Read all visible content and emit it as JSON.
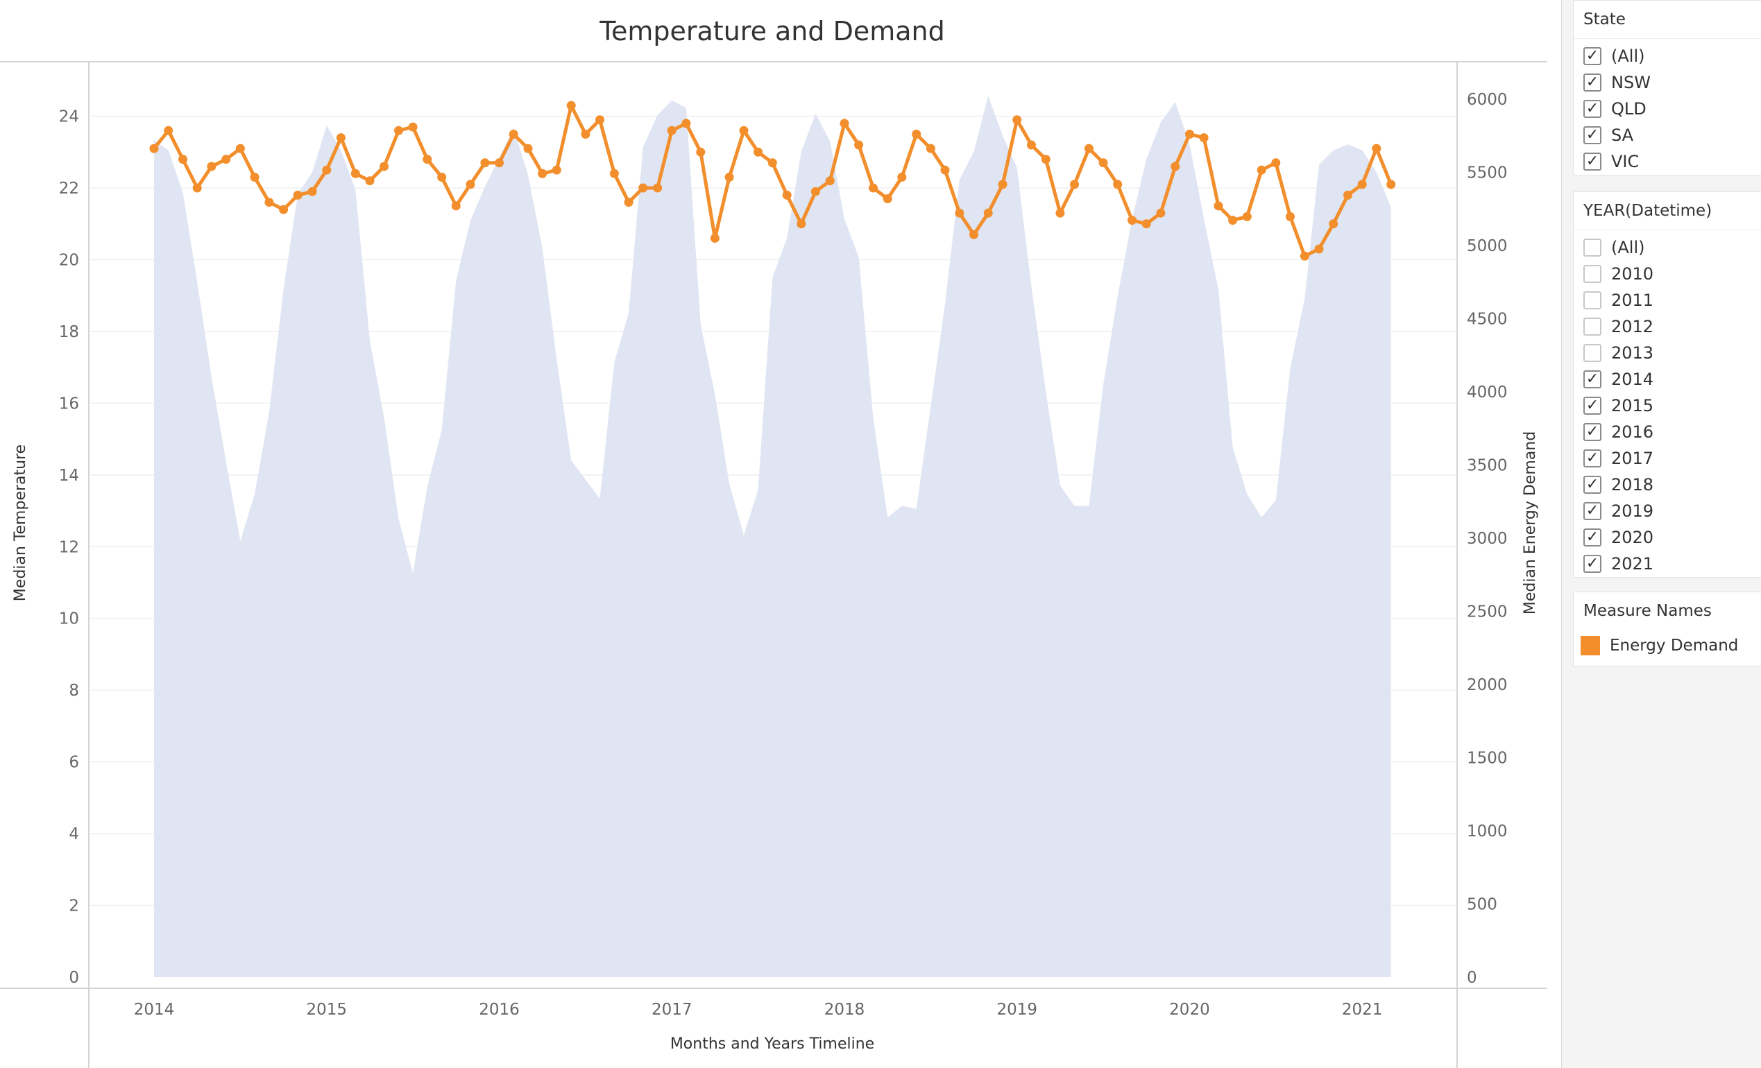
{
  "chart_data": {
    "type": "line",
    "title": "Temperature and Demand",
    "xlabel": "Months and Years Timeline",
    "ylabel_left": "Median Temperature",
    "ylabel_right": "Median Energy Demand",
    "x_ticks": [
      "2014",
      "2015",
      "2016",
      "2017",
      "2018",
      "2019",
      "2020",
      "2021"
    ],
    "y_left_ticks": [
      "0",
      "2",
      "4",
      "6",
      "8",
      "10",
      "12",
      "14",
      "16",
      "18",
      "20",
      "22",
      "24"
    ],
    "y_right_ticks": [
      "0",
      "500",
      "1000",
      "1500",
      "2000",
      "2500",
      "3000",
      "3500",
      "4000",
      "4500",
      "5000",
      "5500",
      "6000"
    ],
    "ylim_left": [
      0,
      25.5
    ],
    "ylim_right": [
      0,
      6250
    ],
    "xlim": [
      2013.63,
      2021.55
    ],
    "grid": true,
    "area_color": "#dfe5f2",
    "line_color": "#f28e2b",
    "series": [
      {
        "axis": "right",
        "type": "area",
        "x": [
          2014.0,
          2014.083,
          2014.167,
          2014.25,
          2014.333,
          2014.417,
          2014.5,
          2014.583,
          2014.667,
          2014.75,
          2014.833,
          2014.917,
          2015.0,
          2015.083,
          2015.167,
          2015.25,
          2015.333,
          2015.417,
          2015.5,
          2015.583,
          2015.667,
          2015.75,
          2015.833,
          2015.917,
          2016.0,
          2016.083,
          2016.167,
          2016.25,
          2016.333,
          2016.417,
          2016.5,
          2016.583,
          2016.667,
          2016.75,
          2016.833,
          2016.917,
          2017.0,
          2017.083,
          2017.167,
          2017.25,
          2017.333,
          2017.417,
          2017.5,
          2017.583,
          2017.667,
          2017.75,
          2017.833,
          2017.917,
          2018.0,
          2018.083,
          2018.167,
          2018.25,
          2018.333,
          2018.417,
          2018.5,
          2018.583,
          2018.667,
          2018.75,
          2018.833,
          2018.917,
          2019.0,
          2019.083,
          2019.167,
          2019.25,
          2019.333,
          2019.417,
          2019.5,
          2019.583,
          2019.667,
          2019.75,
          2019.833,
          2019.917,
          2020.0,
          2020.083,
          2020.167,
          2020.25,
          2020.333,
          2020.417,
          2020.5,
          2020.583,
          2020.667,
          2020.75,
          2020.833,
          2020.917,
          2021.0,
          2021.083,
          2021.167
        ],
        "values": [
          5720,
          5650,
          5360,
          4750,
          4100,
          3520,
          2980,
          3300,
          3860,
          4700,
          5350,
          5500,
          5820,
          5650,
          5380,
          4350,
          3820,
          3130,
          2760,
          3350,
          3740,
          4760,
          5170,
          5400,
          5600,
          5800,
          5480,
          4980,
          4220,
          3530,
          3400,
          3270,
          4200,
          4540,
          5670,
          5890,
          5990,
          5940,
          4460,
          3980,
          3370,
          3020,
          3330,
          4780,
          5050,
          5640,
          5900,
          5710,
          5180,
          4920,
          3820,
          3140,
          3220,
          3200,
          3900,
          4600,
          5450,
          5640,
          6020,
          5750,
          5530,
          4720,
          4000,
          3360,
          3220,
          3220,
          4050,
          4650,
          5180,
          5590,
          5840,
          5980,
          5690,
          5180,
          4700,
          3620,
          3300,
          3140,
          3260,
          4160,
          4640,
          5550,
          5650,
          5690,
          5650,
          5500,
          5260
        ]
      },
      {
        "name": "Energy Demand",
        "axis": "left",
        "type": "line",
        "x": [
          2014.0,
          2014.083,
          2014.167,
          2014.25,
          2014.333,
          2014.417,
          2014.5,
          2014.583,
          2014.667,
          2014.75,
          2014.833,
          2014.917,
          2015.0,
          2015.083,
          2015.167,
          2015.25,
          2015.333,
          2015.417,
          2015.5,
          2015.583,
          2015.667,
          2015.75,
          2015.833,
          2015.917,
          2016.0,
          2016.083,
          2016.167,
          2016.25,
          2016.333,
          2016.417,
          2016.5,
          2016.583,
          2016.667,
          2016.75,
          2016.833,
          2016.917,
          2017.0,
          2017.083,
          2017.167,
          2017.25,
          2017.333,
          2017.417,
          2017.5,
          2017.583,
          2017.667,
          2017.75,
          2017.833,
          2017.917,
          2018.0,
          2018.083,
          2018.167,
          2018.25,
          2018.333,
          2018.417,
          2018.5,
          2018.583,
          2018.667,
          2018.75,
          2018.833,
          2018.917,
          2019.0,
          2019.083,
          2019.167,
          2019.25,
          2019.333,
          2019.417,
          2019.5,
          2019.583,
          2019.667,
          2019.75,
          2019.833,
          2019.917,
          2020.0,
          2020.083,
          2020.167,
          2020.25,
          2020.333,
          2020.417,
          2020.5,
          2020.583,
          2020.667,
          2020.75,
          2020.833,
          2020.917,
          2021.0,
          2021.083,
          2021.167
        ],
        "values": [
          23.1,
          23.6,
          22.8,
          22.0,
          22.6,
          22.8,
          23.1,
          22.3,
          21.6,
          21.4,
          21.8,
          21.9,
          22.5,
          23.4,
          22.4,
          22.2,
          22.6,
          23.6,
          23.7,
          22.8,
          22.3,
          21.5,
          22.1,
          22.7,
          22.7,
          23.5,
          23.1,
          22.4,
          22.5,
          24.3,
          23.5,
          23.9,
          22.4,
          21.6,
          22.0,
          22.0,
          23.6,
          23.8,
          23.0,
          20.6,
          22.3,
          23.6,
          23.0,
          22.7,
          21.8,
          21.0,
          21.9,
          22.2,
          23.8,
          23.2,
          22.0,
          21.7,
          22.3,
          23.5,
          23.1,
          22.5,
          21.3,
          20.7,
          21.3,
          22.1,
          23.9,
          23.2,
          22.8,
          21.3,
          22.1,
          23.1,
          22.7,
          22.1,
          21.1,
          21.0,
          21.3,
          22.6,
          23.5,
          23.4,
          21.5,
          21.1,
          21.2,
          22.5,
          22.7,
          21.2,
          20.1,
          20.3,
          21.0,
          21.8,
          22.1,
          23.1,
          22.1
        ]
      }
    ]
  },
  "filters": {
    "state": {
      "title": "State",
      "items": [
        {
          "label": "(All)",
          "checked": true
        },
        {
          "label": "NSW",
          "checked": true
        },
        {
          "label": "QLD",
          "checked": true
        },
        {
          "label": "SA",
          "checked": true
        },
        {
          "label": "VIC",
          "checked": true
        }
      ]
    },
    "year": {
      "title": "YEAR(Datetime)",
      "items": [
        {
          "label": "(All)",
          "checked": false
        },
        {
          "label": "2010",
          "checked": false
        },
        {
          "label": "2011",
          "checked": false
        },
        {
          "label": "2012",
          "checked": false
        },
        {
          "label": "2013",
          "checked": false
        },
        {
          "label": "2014",
          "checked": true
        },
        {
          "label": "2015",
          "checked": true
        },
        {
          "label": "2016",
          "checked": true
        },
        {
          "label": "2017",
          "checked": true
        },
        {
          "label": "2018",
          "checked": true
        },
        {
          "label": "2019",
          "checked": true
        },
        {
          "label": "2020",
          "checked": true
        },
        {
          "label": "2021",
          "checked": true
        }
      ]
    }
  },
  "legend": {
    "title": "Measure Names",
    "items": [
      {
        "label": "Energy Demand",
        "color": "#f28e2b"
      }
    ]
  },
  "checkmark_glyph": "✓"
}
